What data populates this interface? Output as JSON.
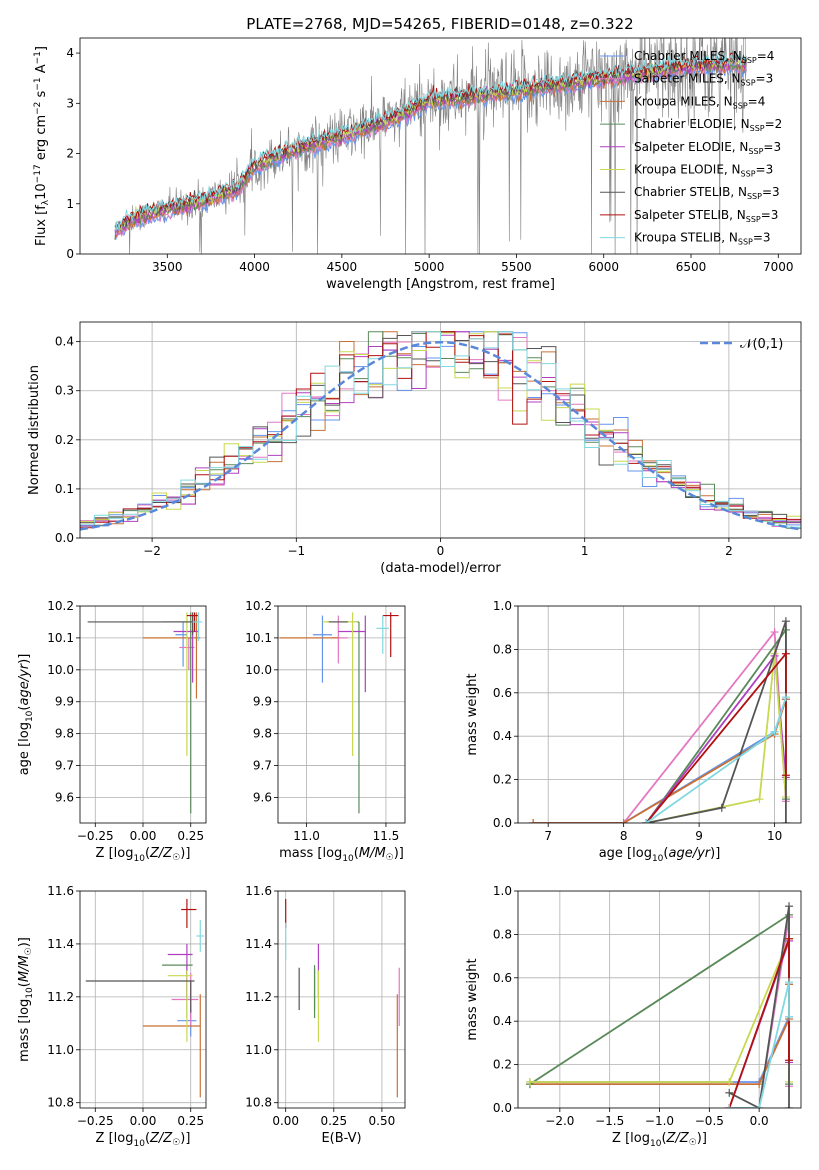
{
  "title": "PLATE=2768, MJD=54265, FIBERID=0148, z=0.322",
  "colors": {
    "models": [
      "#6495ed",
      "#e377c2",
      "#c87137",
      "#5a8a5a",
      "#b040c0",
      "#c8d850",
      "#555555",
      "#b01010",
      "#80d8e0"
    ],
    "gaussian": "#5a88d8",
    "spectrum": "#808080",
    "grid": "#b0b0b0"
  },
  "chart_data": [
    {
      "id": "spectrum",
      "type": "line",
      "title": "PLATE=2768, MJD=54265, FIBERID=0148, z=0.322",
      "xlabel": "wavelength [Angstrom, rest frame]",
      "ylabel": "Flux [f_λ 10^-17 erg cm^-2 s^-1 A^-1]",
      "xlim": [
        3000,
        7130
      ],
      "ylim": [
        0,
        4.3
      ],
      "xticks": [
        3500,
        4000,
        4500,
        5000,
        5500,
        6000,
        6500,
        7000
      ],
      "yticks": [
        0,
        1,
        2,
        3,
        4
      ],
      "grid": false,
      "legend_position": "top-right",
      "legend": [
        {
          "label": "Chabrier MILES, N",
          "sub": "SSP",
          "suffix": "=4"
        },
        {
          "label": "Salpeter MILES, N",
          "sub": "SSP",
          "suffix": "=3"
        },
        {
          "label": "Kroupa MILES, N",
          "sub": "SSP",
          "suffix": "=4"
        },
        {
          "label": "Chabrier ELODIE, N",
          "sub": "SSP",
          "suffix": "=2"
        },
        {
          "label": "Salpeter ELODIE, N",
          "sub": "SSP",
          "suffix": "=3"
        },
        {
          "label": "Kroupa ELODIE, N",
          "sub": "SSP",
          "suffix": "=3"
        },
        {
          "label": "Chabrier STELIB, N",
          "sub": "SSP",
          "suffix": "=3"
        },
        {
          "label": "Salpeter STELIB, N",
          "sub": "SSP",
          "suffix": "=3"
        },
        {
          "label": "Kroupa STELIB, N",
          "sub": "SSP",
          "suffix": "=3"
        }
      ],
      "x_range": [
        3200,
        6820
      ],
      "continuum": {
        "x": [
          3200,
          3300,
          3500,
          3700,
          3900,
          4000,
          4200,
          4500,
          4800,
          5000,
          5300,
          5600,
          5900,
          6200,
          6500,
          6820
        ],
        "y": [
          0.45,
          0.7,
          0.9,
          1.05,
          1.3,
          1.75,
          2.05,
          2.35,
          2.7,
          3.05,
          3.15,
          3.3,
          3.45,
          3.6,
          3.75,
          3.8
        ]
      }
    },
    {
      "id": "residuals",
      "type": "histogram",
      "xlabel": "(data-model)/error",
      "ylabel": "Normed distribution",
      "xlim": [
        -2.5,
        2.5
      ],
      "ylim": [
        0,
        0.44
      ],
      "xticks": [
        -2,
        -1,
        0,
        1,
        2
      ],
      "yticks": [
        0.0,
        0.1,
        0.2,
        0.3,
        0.4
      ],
      "grid": true,
      "legend_position": "top-right",
      "legend": [
        "N(0,1)"
      ],
      "bin_width": 0.1,
      "gaussian": {
        "mu": 0,
        "sigma": 1
      }
    },
    {
      "id": "age_vs_Z",
      "type": "errorbar",
      "xlabel": "Z [log10(Z/Z☉)]",
      "ylabel": "age [log10(age/yr)]",
      "xlim": [
        -0.33,
        0.33
      ],
      "ylim": [
        9.52,
        10.2
      ],
      "xticks": [
        -0.25,
        0.0,
        0.25
      ],
      "yticks": [
        9.6,
        9.7,
        9.8,
        9.9,
        10.0,
        10.1,
        10.2
      ],
      "grid": true,
      "points": [
        {
          "x": 0.21,
          "y": 10.11,
          "xerr": [
            0.04,
            0.02
          ],
          "yerr": [
            0.1,
            0.04
          ]
        },
        {
          "x": 0.24,
          "y": 10.07,
          "xerr": [
            0.05,
            0.03
          ],
          "yerr": [
            0.07,
            0.03
          ]
        },
        {
          "x": 0.28,
          "y": 10.1,
          "xerr": [
            0.28,
            0.02
          ],
          "yerr": [
            0.19,
            0.08
          ]
        },
        {
          "x": 0.25,
          "y": 10.15,
          "xerr": [
            0.15,
            0.03
          ],
          "yerr": [
            0.6,
            0.03
          ]
        },
        {
          "x": 0.26,
          "y": 10.12,
          "xerr": [
            0.1,
            0.03
          ],
          "yerr": [
            0.16,
            0.05
          ]
        },
        {
          "x": 0.23,
          "y": 10.15,
          "xerr": [
            0.08,
            0.03
          ],
          "yerr": [
            0.42,
            0.03
          ]
        },
        {
          "x": 0.26,
          "y": 10.15,
          "xerr": [
            0.55,
            0.02
          ],
          "yerr": [
            0.04,
            0.03
          ]
        },
        {
          "x": 0.27,
          "y": 10.17,
          "xerr": [
            0.04,
            0.02
          ],
          "yerr": [
            0.05,
            0.01
          ]
        },
        {
          "x": 0.29,
          "y": 10.15,
          "xerr": [
            0.03,
            0.02
          ],
          "yerr": [
            0.06,
            0.03
          ]
        }
      ]
    },
    {
      "id": "age_vs_mass",
      "type": "errorbar",
      "xlabel": "mass [log10(M/M☉)]",
      "ylabel": "",
      "xlim": [
        10.82,
        11.62
      ],
      "ylim": [
        9.52,
        10.2
      ],
      "xticks": [
        11.0,
        11.5
      ],
      "yticks": [
        9.6,
        9.7,
        9.8,
        9.9,
        10.0,
        10.1,
        10.2
      ],
      "grid": true,
      "points": [
        {
          "x": 11.1,
          "y": 10.11,
          "xerr": [
            0.06,
            0.06
          ],
          "yerr": [
            0.15,
            0.06
          ]
        },
        {
          "x": 11.2,
          "y": 10.1,
          "xerr": [
            0.04,
            0.06
          ],
          "yerr": [
            0.08,
            0.07
          ]
        },
        {
          "x": 11.09,
          "y": 10.1,
          "xerr": [
            0.26,
            0.11
          ],
          "yerr": [
            0.0,
            0.0
          ]
        },
        {
          "x": 11.33,
          "y": 10.15,
          "xerr": [
            0.21,
            0.0
          ],
          "yerr": [
            0.6,
            0.0
          ]
        },
        {
          "x": 11.37,
          "y": 10.12,
          "xerr": [
            0.17,
            0.0
          ],
          "yerr": [
            0.19,
            0.05
          ]
        },
        {
          "x": 11.29,
          "y": 10.15,
          "xerr": [
            0.19,
            0.03
          ],
          "yerr": [
            0.42,
            0.03
          ]
        },
        {
          "x": 11.26,
          "y": 10.15,
          "xerr": [
            0.12,
            0.0
          ],
          "yerr": [
            0.0,
            0.0
          ]
        },
        {
          "x": 11.53,
          "y": 10.17,
          "xerr": [
            0.05,
            0.05
          ],
          "yerr": [
            0.13,
            0.01
          ]
        },
        {
          "x": 11.48,
          "y": 10.13,
          "xerr": [
            0.04,
            0.04
          ],
          "yerr": [
            0.08,
            0.04
          ]
        }
      ]
    },
    {
      "id": "mass_weight_vs_age",
      "type": "line",
      "xlabel": "age [log10(age/yr)]",
      "ylabel": "mass weight",
      "xlim": [
        6.6,
        10.35
      ],
      "ylim": [
        0,
        1.0
      ],
      "xticks": [
        7,
        8,
        9,
        10
      ],
      "yticks": [
        0.0,
        0.2,
        0.4,
        0.6,
        0.8,
        1.0
      ],
      "grid": true,
      "series": [
        {
          "x": [
            6.8,
            8.0,
            10.0,
            10.15
          ],
          "y": [
            0.0,
            0.0,
            0.42,
            0.57
          ]
        },
        {
          "x": [
            6.8,
            8.0,
            10.0,
            10.15
          ],
          "y": [
            0.0,
            0.0,
            0.88,
            0.1
          ]
        },
        {
          "x": [
            6.8,
            8.0,
            10.0,
            10.15
          ],
          "y": [
            0.0,
            0.0,
            0.41,
            0.57
          ]
        },
        {
          "x": [
            8.3,
            10.15,
            10.15
          ],
          "y": [
            0.0,
            0.89,
            0.11
          ]
        },
        {
          "x": [
            8.3,
            10.0,
            10.15
          ],
          "y": [
            0.0,
            0.77,
            0.21
          ]
        },
        {
          "x": [
            8.3,
            9.8,
            10.0,
            10.15
          ],
          "y": [
            0.0,
            0.11,
            0.78,
            0.12
          ]
        },
        {
          "x": [
            8.3,
            9.3,
            10.15,
            10.15
          ],
          "y": [
            0.0,
            0.07,
            0.93,
            0.0
          ]
        },
        {
          "x": [
            8.3,
            10.15,
            10.15
          ],
          "y": [
            0.0,
            0.78,
            0.22
          ]
        },
        {
          "x": [
            8.3,
            10.0,
            10.15
          ],
          "y": [
            0.0,
            0.42,
            0.58
          ]
        }
      ]
    },
    {
      "id": "mass_vs_Z",
      "type": "errorbar",
      "xlabel": "Z [log10(Z/Z☉)]",
      "ylabel": "mass [log10(M/M☉)]",
      "xlim": [
        -0.33,
        0.33
      ],
      "ylim": [
        10.78,
        11.6
      ],
      "xticks": [
        -0.25,
        0.0,
        0.25
      ],
      "yticks": [
        10.8,
        11.0,
        11.2,
        11.4,
        11.6
      ],
      "grid": true,
      "points": [
        {
          "x": 0.25,
          "y": 11.11,
          "xerr": [
            0.07,
            0.03
          ],
          "yerr": [
            0.06,
            0.06
          ]
        },
        {
          "x": 0.25,
          "y": 11.19,
          "xerr": [
            0.1,
            0.04
          ],
          "yerr": [
            0.1,
            0.1
          ]
        },
        {
          "x": 0.3,
          "y": 11.09,
          "xerr": [
            0.3,
            0.0
          ],
          "yerr": [
            0.27,
            0.12
          ]
        },
        {
          "x": 0.23,
          "y": 11.32,
          "xerr": [
            0.13,
            0.03
          ],
          "yerr": [
            0.2,
            0.0
          ]
        },
        {
          "x": 0.23,
          "y": 11.36,
          "xerr": [
            0.1,
            0.03
          ],
          "yerr": [
            0.16,
            0.04
          ]
        },
        {
          "x": 0.23,
          "y": 11.28,
          "xerr": [
            0.1,
            0.03
          ],
          "yerr": [
            0.25,
            0.02
          ]
        },
        {
          "x": 0.25,
          "y": 11.26,
          "xerr": [
            0.55,
            0.02
          ],
          "yerr": [
            0.12,
            0.0
          ]
        },
        {
          "x": 0.23,
          "y": 11.53,
          "xerr": [
            0.03,
            0.05
          ],
          "yerr": [
            0.07,
            0.04
          ]
        },
        {
          "x": 0.3,
          "y": 11.43,
          "xerr": [
            0.02,
            0.02
          ],
          "yerr": [
            0.06,
            0.06
          ]
        }
      ]
    },
    {
      "id": "mass_vs_ebv",
      "type": "errorbar",
      "xlabel": "E(B-V)",
      "ylabel": "",
      "xlim": [
        -0.04,
        0.62
      ],
      "ylim": [
        10.78,
        11.6
      ],
      "xticks": [
        0.0,
        0.25,
        0.5
      ],
      "yticks": [
        10.8,
        11.0,
        11.2,
        11.4,
        11.6
      ],
      "grid": true,
      "points": [
        {
          "x": 0.15,
          "y": 11.25,
          "xerr": [
            0,
            0
          ],
          "yerr": [
            0.1,
            0.06
          ]
        },
        {
          "x": 0.59,
          "y": 11.19,
          "xerr": [
            0,
            0
          ],
          "yerr": [
            0.1,
            0.12
          ]
        },
        {
          "x": 0.58,
          "y": 11.09,
          "xerr": [
            0,
            0
          ],
          "yerr": [
            0.27,
            0.12
          ]
        },
        {
          "x": 0.15,
          "y": 11.32,
          "xerr": [
            0,
            0
          ],
          "yerr": [
            0.2,
            0.0
          ]
        },
        {
          "x": 0.17,
          "y": 11.32,
          "xerr": [
            0,
            0
          ],
          "yerr": [
            0.12,
            0.08
          ]
        },
        {
          "x": 0.17,
          "y": 11.2,
          "xerr": [
            0,
            0
          ],
          "yerr": [
            0.17,
            0.1
          ]
        },
        {
          "x": 0.07,
          "y": 11.23,
          "xerr": [
            0,
            0
          ],
          "yerr": [
            0.08,
            0.08
          ]
        },
        {
          "x": 0.0,
          "y": 11.5,
          "xerr": [
            0,
            0
          ],
          "yerr": [
            0.04,
            0.07
          ]
        },
        {
          "x": 0.0,
          "y": 11.4,
          "xerr": [
            0,
            0
          ],
          "yerr": [
            0.06,
            0.08
          ]
        }
      ]
    },
    {
      "id": "mass_weight_vs_Z",
      "type": "line",
      "xlabel": "Z [log10(Z/Z☉)]",
      "ylabel": "mass weight",
      "xlim": [
        -2.42,
        0.42
      ],
      "ylim": [
        0,
        1.0
      ],
      "xticks": [
        -2.0,
        -1.5,
        -1.0,
        -0.5,
        0.0
      ],
      "yticks": [
        0.0,
        0.2,
        0.4,
        0.6,
        0.8,
        1.0
      ],
      "grid": true,
      "series": [
        {
          "x": [
            -2.3,
            0.0,
            0.3,
            0.3
          ],
          "y": [
            0.12,
            0.12,
            0.42,
            0.57
          ]
        },
        {
          "x": [
            -0.3,
            0.0,
            0.3,
            0.3
          ],
          "y": [
            0.0,
            0.0,
            0.88,
            0.1
          ]
        },
        {
          "x": [
            -2.3,
            0.0,
            0.3,
            0.3
          ],
          "y": [
            0.11,
            0.11,
            0.41,
            0.57
          ]
        },
        {
          "x": [
            -2.3,
            0.3,
            0.3
          ],
          "y": [
            0.11,
            0.89,
            0.11
          ]
        },
        {
          "x": [
            -0.3,
            0.3,
            0.3
          ],
          "y": [
            0.0,
            0.77,
            0.21
          ]
        },
        {
          "x": [
            -2.3,
            -0.3,
            0.3,
            0.3
          ],
          "y": [
            0.12,
            0.12,
            0.78,
            0.12
          ]
        },
        {
          "x": [
            -0.3,
            0.0,
            0.3,
            0.3
          ],
          "y": [
            0.07,
            0.0,
            0.93,
            0.0
          ]
        },
        {
          "x": [
            -0.3,
            0.3,
            0.3
          ],
          "y": [
            0.0,
            0.78,
            0.22
          ]
        },
        {
          "x": [
            -0.3,
            0.0,
            0.3,
            0.3
          ],
          "y": [
            0.0,
            0.0,
            0.58,
            0.42
          ]
        }
      ]
    }
  ]
}
